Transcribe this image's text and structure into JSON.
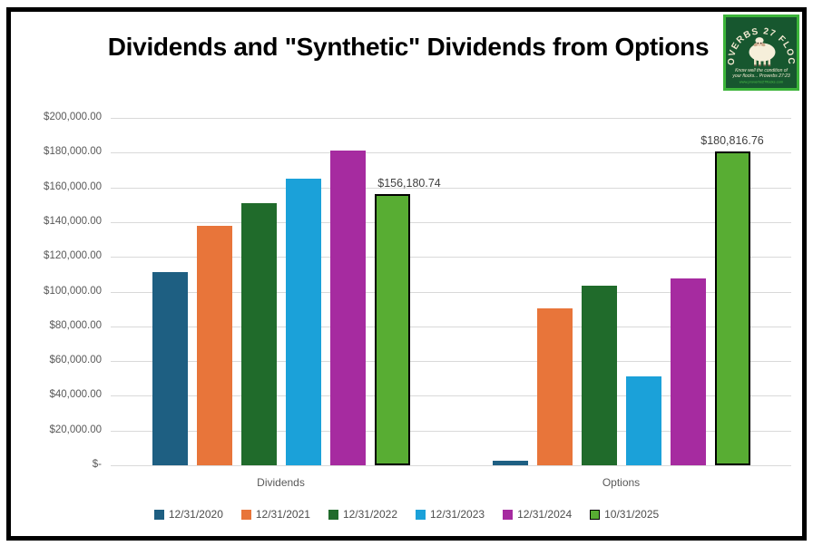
{
  "title": "Dividends and \"Synthetic\" Dividends from Options",
  "logo": {
    "arc_text": "PROVERBS 27 FLOCKS",
    "tagline_line1": "Know well the condition of",
    "tagline_line2": "your flocks... Proverbs 27:23",
    "url_text": "www.proverbs27flocks.com",
    "bg_color": "#17572f",
    "border_color": "#3cb43a",
    "text_color": "#f2e8d0"
  },
  "chart_data": {
    "type": "bar",
    "categories": [
      "Dividends",
      "Options"
    ],
    "series": [
      {
        "name": "12/31/2020",
        "color": "#1e5f82",
        "values": [
          111000,
          2800
        ]
      },
      {
        "name": "12/31/2021",
        "color": "#e8753a",
        "values": [
          138000,
          90200
        ]
      },
      {
        "name": "12/31/2022",
        "color": "#206b2b",
        "values": [
          151000,
          103500
        ]
      },
      {
        "name": "12/31/2023",
        "color": "#1ba1d9",
        "values": [
          165000,
          51000
        ]
      },
      {
        "name": "12/31/2024",
        "color": "#a62ba0",
        "values": [
          181000,
          107600
        ]
      },
      {
        "name": "10/31/2025",
        "color": "#58ad33",
        "outlined": true,
        "values": [
          156180.74,
          180816.76
        ],
        "data_labels": [
          "$156,180.74",
          "$180,816.76"
        ]
      }
    ],
    "ylim": [
      0,
      200000
    ],
    "y_tick_labels": [
      "$-",
      "$20,000.00",
      "$40,000.00",
      "$60,000.00",
      "$80,000.00",
      "$100,000.00",
      "$120,000.00",
      "$140,000.00",
      "$160,000.00",
      "$180,000.00",
      "$200,000.00"
    ],
    "grid": true,
    "legend_position": "bottom",
    "grid_color": "#d9d9d9"
  }
}
